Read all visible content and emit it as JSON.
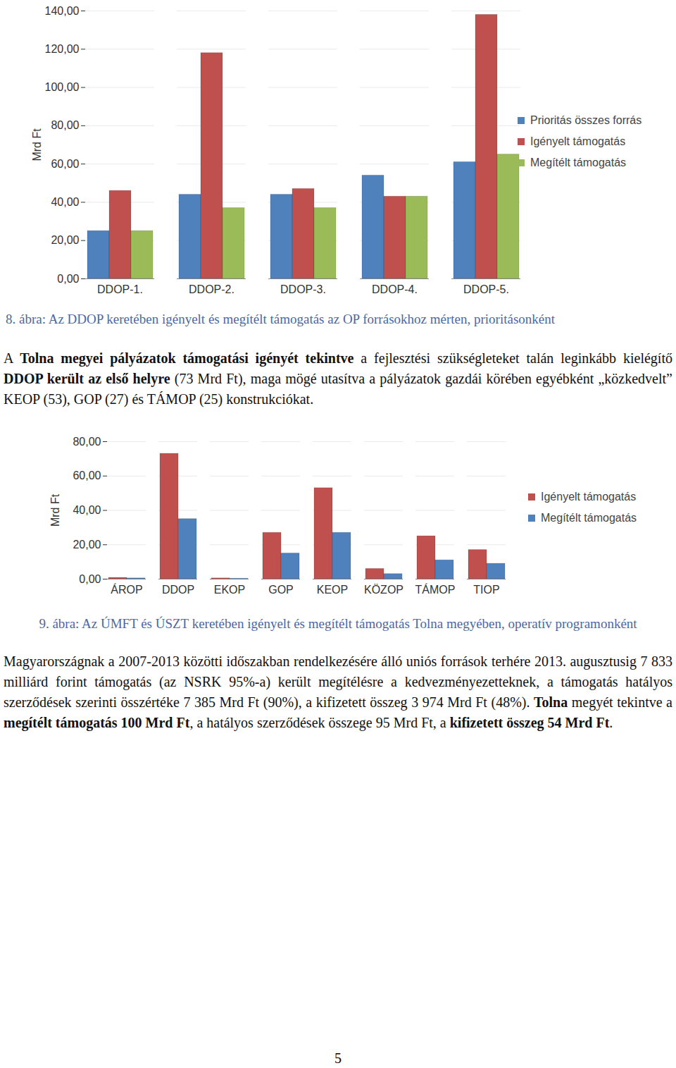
{
  "chart_data": [
    {
      "type": "bar",
      "categories": [
        "DDOP-1.",
        "DDOP-2.",
        "DDOP-3.",
        "DDOP-4.",
        "DDOP-5."
      ],
      "y_label": "Mrd Ft",
      "series": [
        {
          "name": "Prioritás összes forrás",
          "color": "#4f81bd",
          "values": [
            25,
            44,
            44,
            54,
            61
          ]
        },
        {
          "name": "Igényelt támogatás",
          "color": "#c0504d",
          "values": [
            46,
            118,
            47,
            43,
            138
          ]
        },
        {
          "name": "Megítélt támogatás",
          "color": "#9bbb59",
          "values": [
            25,
            37,
            37,
            43,
            65
          ]
        }
      ],
      "ylim": [
        0,
        140
      ],
      "yticks": [
        {
          "value": 0,
          "label": "0,00"
        },
        {
          "value": 20,
          "label": "20,00"
        },
        {
          "value": 40,
          "label": "40,00"
        },
        {
          "value": 60,
          "label": "60,00"
        },
        {
          "value": 80,
          "label": "80,00"
        },
        {
          "value": 100,
          "label": "100,00"
        },
        {
          "value": 120,
          "label": "120,00"
        },
        {
          "value": 140,
          "label": "140,00"
        }
      ],
      "grid": true,
      "legend": "right"
    },
    {
      "type": "bar",
      "categories": [
        "ÁROP",
        "DDOP",
        "EKOP",
        "GOP",
        "KEOP",
        "KÖZOP",
        "TÁMOP",
        "TIOP"
      ],
      "y_label": "Mrd Ft",
      "series": [
        {
          "name": "Igényelt támogatás",
          "color": "#c0504d",
          "values": [
            0.8,
            73,
            0.5,
            27,
            53,
            6,
            25,
            17
          ]
        },
        {
          "name": "Megítélt támogatás",
          "color": "#4f81bd",
          "values": [
            0.5,
            35,
            0.3,
            15,
            27,
            3,
            11,
            9
          ]
        }
      ],
      "ylim": [
        0,
        80
      ],
      "yticks": [
        {
          "value": 0,
          "label": "0,00"
        },
        {
          "value": 20,
          "label": "20,00"
        },
        {
          "value": 40,
          "label": "40,00"
        },
        {
          "value": 60,
          "label": "60,00"
        },
        {
          "value": 80,
          "label": "80,00"
        }
      ],
      "grid": true,
      "legend": "right"
    }
  ],
  "document": {
    "captions": [
      "8. ábra: Az DDOP keretében igényelt és megítélt támogatás az OP forrásokhoz mérten, prioritásonként",
      "9. ábra: Az ÚMFT és ÚSZT keretében igényelt és megítélt támogatás Tolna megyében, operatív programonként"
    ],
    "paragraphs": [
      [
        {
          "text": "A "
        },
        {
          "text": "Tolna megyei pályázatok támogatási igényét tekintve",
          "bold": true
        },
        {
          "text": " a fejlesztési szükségleteket talán leginkább kielégítő "
        },
        {
          "text": "DDOP került az első helyre",
          "bold": true
        },
        {
          "text": " (73 Mrd Ft), maga mögé utasítva a pályázatok gazdái körében egyébként „közkedvelt” KEOP (53), GOP (27) és TÁMOP (25) konstrukciókat."
        }
      ],
      [
        {
          "text": "Magyarországnak a 2007-2013 közötti időszakban rendelkezésére álló uniós források terhére 2013. augusztusig 7 833 milliárd forint támogatás (az NSRK 95%-a) került megítélésre a kedvezményezetteknek, a támogatás hatályos szerződések szerinti összértéke 7 385 Mrd Ft (90%), a kifizetett összeg 3 974 Mrd Ft (48%). "
        },
        {
          "text": "Tolna",
          "bold": true
        },
        {
          "text": " megyét tekintve a "
        },
        {
          "text": "megítélt támogatás 100 Mrd Ft",
          "bold": true
        },
        {
          "text": ", a hatályos szerződések összege 95 Mrd Ft, a "
        },
        {
          "text": "kifizetett összeg 54 Mrd Ft",
          "bold": true
        },
        {
          "text": "."
        }
      ]
    ],
    "page_number": "5"
  }
}
